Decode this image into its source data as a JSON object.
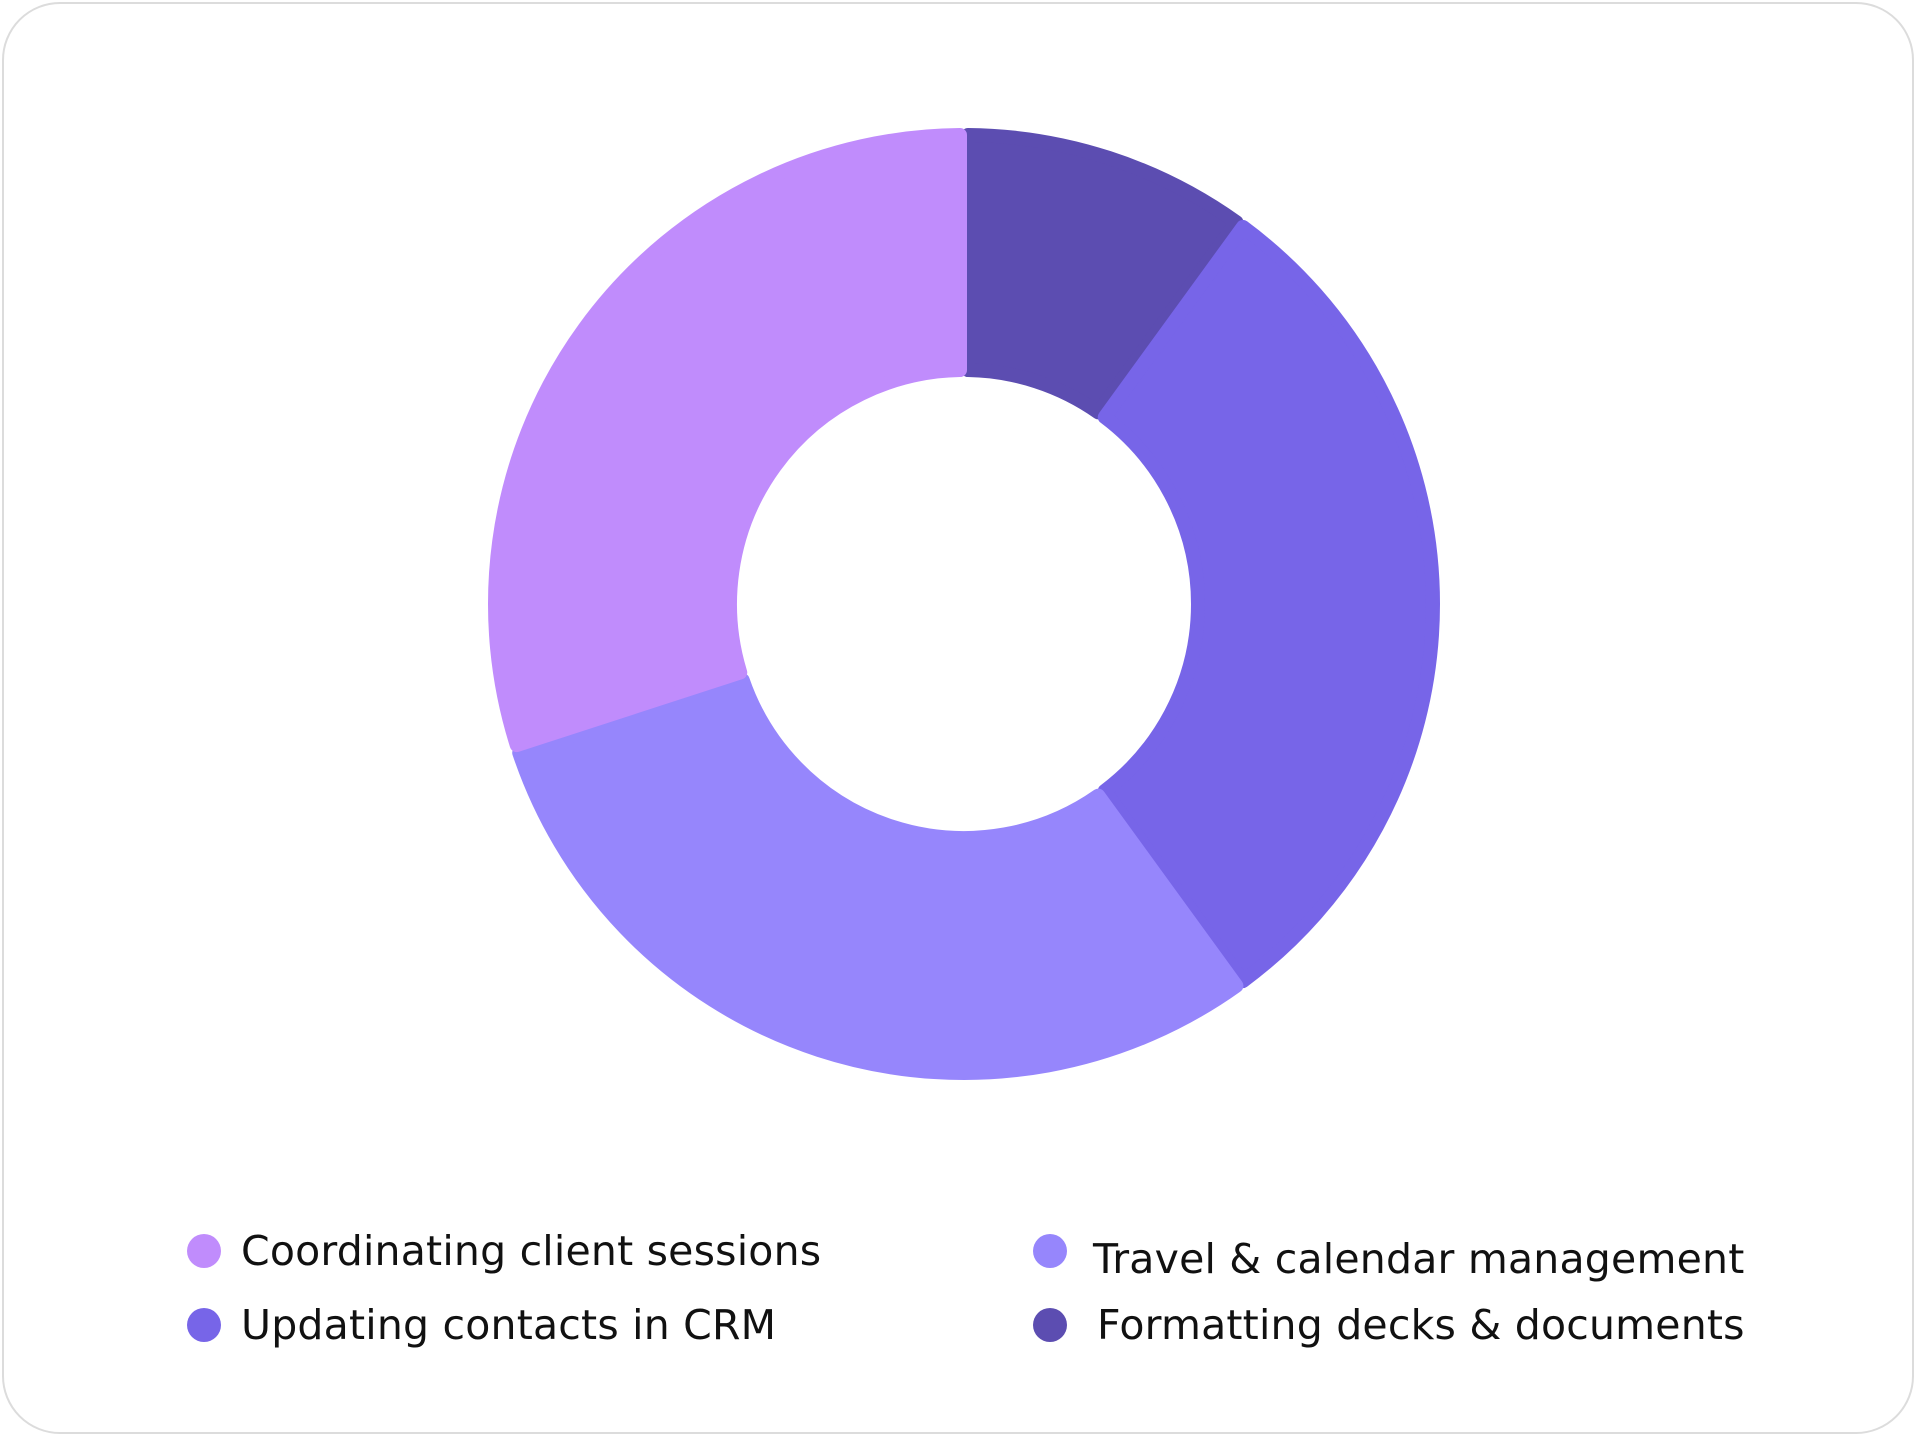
{
  "chart_data": {
    "type": "pie",
    "variant": "donut",
    "title": "",
    "legend_position": "bottom",
    "series": [
      {
        "name": "Coordinating client sessions",
        "value": 30,
        "color": "#C08CFC"
      },
      {
        "name": "Travel & calendar management",
        "value": 30,
        "color": "#9686FC"
      },
      {
        "name": "Updating contacts in CRM",
        "value": 30,
        "color": "#7765E8"
      },
      {
        "name": "Formatting decks & documents",
        "value": 10,
        "color": "#5C4DB1"
      }
    ]
  },
  "legend": [
    {
      "label": "Coordinating client sessions",
      "color": "#C08CFC"
    },
    {
      "label": "Updating contacts in CRM",
      "color": "#7765E8"
    },
    {
      "label": "Travel & calendar management",
      "color": "#9686FC"
    },
    {
      "label": "Formatting decks & documents",
      "color": "#5C4DB1"
    }
  ]
}
